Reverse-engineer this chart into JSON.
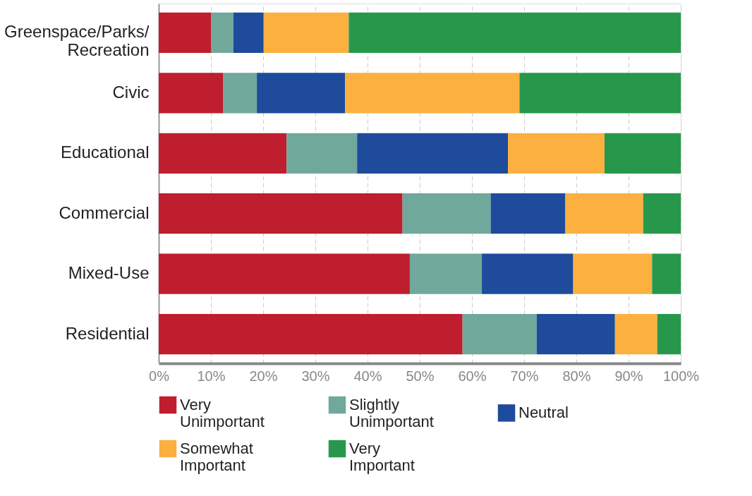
{
  "chart_data": {
    "type": "bar",
    "orientation": "horizontal",
    "stacked": true,
    "categories": [
      "Greenspace/Parks/Recreation",
      "Civic",
      "Educational",
      "Commercial",
      "Mixed-Use",
      "Residential"
    ],
    "series": [
      {
        "name": "Very Unimportant",
        "color": "#be1e2d",
        "values": [
          10.0,
          12.3,
          24.5,
          46.7,
          48.1,
          58.2
        ]
      },
      {
        "name": "Slightly Unimportant",
        "color": "#70a89c",
        "values": [
          4.3,
          6.5,
          13.5,
          16.9,
          13.8,
          14.2
        ]
      },
      {
        "name": "Neutral",
        "color": "#1e4b9c",
        "values": [
          5.8,
          16.9,
          28.9,
          14.3,
          17.5,
          15.0
        ]
      },
      {
        "name": "Somewhat Important",
        "color": "#fbb040",
        "values": [
          16.3,
          33.4,
          18.5,
          14.9,
          15.1,
          8.1
        ]
      },
      {
        "name": "Very Important",
        "color": "#27984b",
        "values": [
          63.6,
          30.9,
          14.6,
          7.2,
          5.5,
          4.5
        ]
      }
    ],
    "xlim": [
      0,
      100
    ],
    "xticks": [
      {
        "value": 0,
        "label": "0%"
      },
      {
        "value": 10,
        "label": "10%"
      },
      {
        "value": 20,
        "label": "20%"
      },
      {
        "value": 30,
        "label": "30%"
      },
      {
        "value": 40,
        "label": "40%"
      },
      {
        "value": 50,
        "label": "50%"
      },
      {
        "value": 60,
        "label": "60%"
      },
      {
        "value": 70,
        "label": "70%"
      },
      {
        "value": 80,
        "label": "80%"
      },
      {
        "value": 90,
        "label": "90%"
      },
      {
        "value": 100,
        "label": "100%"
      }
    ],
    "grid": "x",
    "legend": "bottom"
  }
}
